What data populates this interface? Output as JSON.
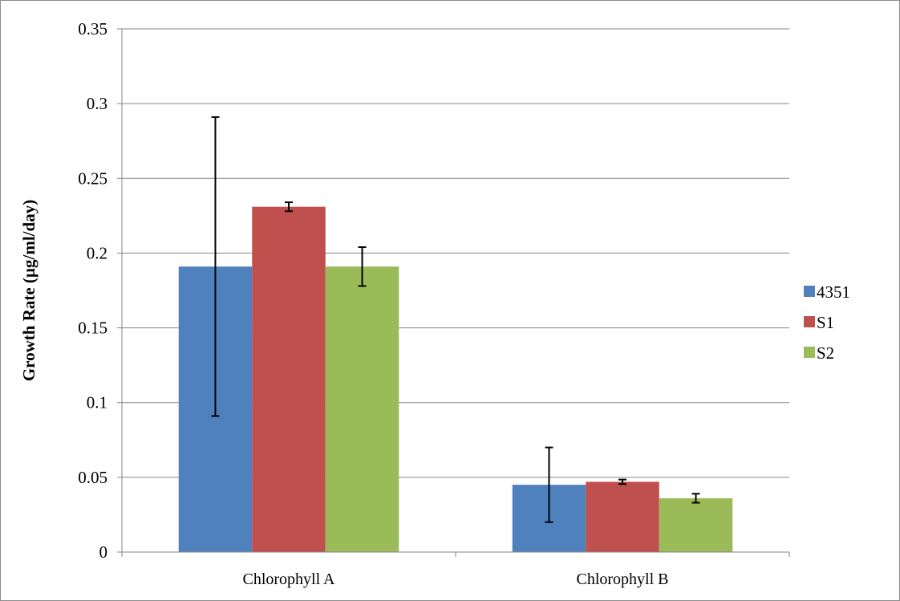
{
  "chart_data": {
    "type": "bar",
    "title": "",
    "xlabel": "",
    "ylabel": "Growth Rate (µg/ml/day)",
    "ylim": [
      0,
      0.35
    ],
    "yticks": [
      "0",
      "0.05",
      "0.1",
      "0.15",
      "0.2",
      "0.25",
      "0.3",
      "0.35"
    ],
    "grid": "horizontal",
    "legend_position": "right",
    "categories": [
      "Chlorophyll A",
      "Chlorophyll B"
    ],
    "series": [
      {
        "name": "4351",
        "color": "#4f81bd",
        "values": [
          0.191,
          0.045
        ],
        "errors": [
          0.1,
          0.025
        ]
      },
      {
        "name": "S1",
        "color": "#c0504d",
        "values": [
          0.231,
          0.047
        ],
        "errors": [
          0.003,
          0.0015
        ]
      },
      {
        "name": "S2",
        "color": "#9bbb59",
        "values": [
          0.191,
          0.036
        ],
        "errors": [
          0.013,
          0.003
        ]
      }
    ]
  }
}
